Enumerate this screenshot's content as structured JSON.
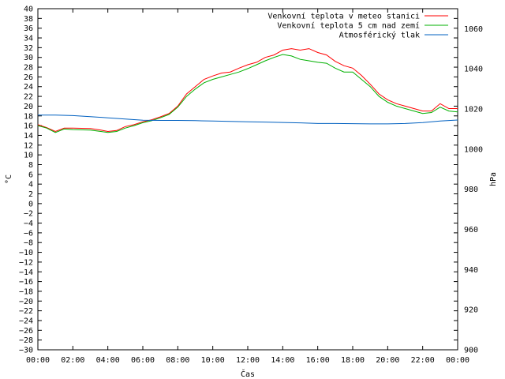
{
  "chart_data": {
    "type": "line",
    "xlabel": "Čas",
    "ylabel": "°C",
    "y2label": "hPa",
    "xlim": [
      0,
      24
    ],
    "ylim": [
      -30,
      40
    ],
    "y2lim": [
      900,
      1070
    ],
    "x_ticks": [
      "00:00",
      "02:00",
      "04:00",
      "06:00",
      "08:00",
      "10:00",
      "12:00",
      "14:00",
      "16:00",
      "18:00",
      "20:00",
      "22:00",
      "00:00"
    ],
    "y_ticks": [
      40,
      38,
      36,
      34,
      32,
      30,
      28,
      26,
      24,
      22,
      20,
      18,
      16,
      14,
      12,
      10,
      8,
      6,
      4,
      2,
      0,
      -2,
      -4,
      -6,
      -8,
      -10,
      -12,
      -14,
      -16,
      -18,
      -20,
      -22,
      -24,
      -26,
      -28,
      -30
    ],
    "y2_ticks": [
      1060,
      1040,
      1020,
      1000,
      980,
      960,
      940,
      920,
      900
    ],
    "legend_position": "top-right",
    "series": [
      {
        "name": "Venkovní teplota v meteo stanici",
        "axis": "left",
        "color": "#ff0000",
        "points": [
          [
            0,
            16.2
          ],
          [
            0.5,
            15.6
          ],
          [
            1,
            14.8
          ],
          [
            1.5,
            15.5
          ],
          [
            2,
            15.5
          ],
          [
            3,
            15.4
          ],
          [
            3.6,
            15.1
          ],
          [
            4,
            14.8
          ],
          [
            4.5,
            15.0
          ],
          [
            5,
            15.8
          ],
          [
            5.5,
            16.2
          ],
          [
            6,
            16.8
          ],
          [
            6.5,
            17.2
          ],
          [
            7,
            17.8
          ],
          [
            7.5,
            18.5
          ],
          [
            8,
            20.0
          ],
          [
            8.5,
            22.5
          ],
          [
            9,
            24.0
          ],
          [
            9.5,
            25.5
          ],
          [
            10,
            26.2
          ],
          [
            10.5,
            26.8
          ],
          [
            11,
            27.0
          ],
          [
            11.5,
            27.8
          ],
          [
            12,
            28.5
          ],
          [
            12.5,
            29.0
          ],
          [
            13,
            30.0
          ],
          [
            13.5,
            30.5
          ],
          [
            14,
            31.5
          ],
          [
            14.5,
            31.8
          ],
          [
            15,
            31.5
          ],
          [
            15.5,
            31.8
          ],
          [
            16,
            31.0
          ],
          [
            16.5,
            30.5
          ],
          [
            17,
            29.2
          ],
          [
            17.5,
            28.3
          ],
          [
            18,
            27.8
          ],
          [
            18.5,
            26.3
          ],
          [
            19,
            24.5
          ],
          [
            19.5,
            22.5
          ],
          [
            20,
            21.3
          ],
          [
            20.5,
            20.5
          ],
          [
            21,
            20.0
          ],
          [
            21.5,
            19.5
          ],
          [
            22,
            19.0
          ],
          [
            22.5,
            19.0
          ],
          [
            23,
            20.5
          ],
          [
            23.5,
            19.5
          ],
          [
            24,
            19.5
          ]
        ]
      },
      {
        "name": "Venkovní teplota 5 cm nad zemí",
        "axis": "left",
        "color": "#00b000",
        "points": [
          [
            0,
            16.0
          ],
          [
            0.5,
            15.5
          ],
          [
            1,
            14.6
          ],
          [
            1.5,
            15.3
          ],
          [
            2,
            15.2
          ],
          [
            3,
            15.1
          ],
          [
            3.6,
            14.8
          ],
          [
            4,
            14.6
          ],
          [
            4.5,
            14.8
          ],
          [
            5,
            15.5
          ],
          [
            5.5,
            16.0
          ],
          [
            6,
            16.6
          ],
          [
            6.5,
            17.0
          ],
          [
            7,
            17.6
          ],
          [
            7.5,
            18.3
          ],
          [
            8,
            19.8
          ],
          [
            8.5,
            22.0
          ],
          [
            9,
            23.5
          ],
          [
            9.5,
            24.8
          ],
          [
            10,
            25.5
          ],
          [
            10.5,
            26.0
          ],
          [
            11,
            26.5
          ],
          [
            11.5,
            27.0
          ],
          [
            12,
            27.7
          ],
          [
            12.5,
            28.5
          ],
          [
            13,
            29.3
          ],
          [
            13.5,
            30.0
          ],
          [
            14,
            30.6
          ],
          [
            14.5,
            30.3
          ],
          [
            15,
            29.6
          ],
          [
            15.5,
            29.3
          ],
          [
            16,
            29.0
          ],
          [
            16.5,
            28.8
          ],
          [
            17,
            27.8
          ],
          [
            17.5,
            27.0
          ],
          [
            18,
            27.0
          ],
          [
            18.5,
            25.5
          ],
          [
            19,
            24.0
          ],
          [
            19.5,
            22.0
          ],
          [
            20,
            20.8
          ],
          [
            20.5,
            20.0
          ],
          [
            21,
            19.5
          ],
          [
            21.5,
            19.0
          ],
          [
            22,
            18.5
          ],
          [
            22.5,
            18.7
          ],
          [
            23,
            19.8
          ],
          [
            23.5,
            19.0
          ],
          [
            24,
            18.8
          ]
        ]
      },
      {
        "name": "Atmosférický tlak",
        "axis": "right",
        "color": "#0060c0",
        "points": [
          [
            0,
            1017
          ],
          [
            1,
            1017
          ],
          [
            2,
            1016.7
          ],
          [
            3,
            1016.2
          ],
          [
            4,
            1015.6
          ],
          [
            5,
            1015
          ],
          [
            6,
            1014.4
          ],
          [
            7,
            1014.3
          ],
          [
            8,
            1014.3
          ],
          [
            9,
            1014.2
          ],
          [
            10,
            1014
          ],
          [
            11,
            1013.8
          ],
          [
            12,
            1013.6
          ],
          [
            13,
            1013.5
          ],
          [
            14,
            1013.3
          ],
          [
            15,
            1013.1
          ],
          [
            16,
            1012.8
          ],
          [
            17,
            1012.8
          ],
          [
            18,
            1012.7
          ],
          [
            19,
            1012.6
          ],
          [
            20,
            1012.6
          ],
          [
            21,
            1012.8
          ],
          [
            22,
            1013.2
          ],
          [
            23,
            1014
          ],
          [
            24,
            1014.5
          ]
        ]
      }
    ]
  }
}
